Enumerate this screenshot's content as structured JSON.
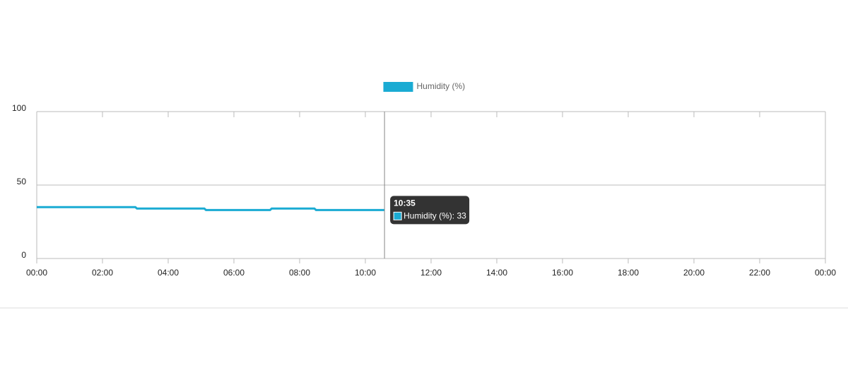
{
  "chart_data": {
    "type": "line",
    "x": [
      0,
      3.0,
      3.05,
      5.1,
      5.15,
      7.1,
      7.15,
      8.45,
      8.5,
      10.5833
    ],
    "series": [
      {
        "name": "Humidity (%)",
        "color": "#1aabd3",
        "values": [
          35,
          35,
          34,
          34,
          33,
          33,
          34,
          34,
          33,
          33
        ]
      }
    ],
    "xlim": [
      0,
      24
    ],
    "xticks": [
      {
        "value": 0,
        "label": "00:00"
      },
      {
        "value": 2,
        "label": "02:00"
      },
      {
        "value": 4,
        "label": "04:00"
      },
      {
        "value": 6,
        "label": "06:00"
      },
      {
        "value": 8,
        "label": "08:00"
      },
      {
        "value": 10,
        "label": "10:00"
      },
      {
        "value": 12,
        "label": "12:00"
      },
      {
        "value": 14,
        "label": "14:00"
      },
      {
        "value": 16,
        "label": "16:00"
      },
      {
        "value": 18,
        "label": "18:00"
      },
      {
        "value": 20,
        "label": "20:00"
      },
      {
        "value": 22,
        "label": "22:00"
      },
      {
        "value": 24,
        "label": "00:00"
      }
    ],
    "ylim": [
      0,
      100
    ],
    "yticks": [
      0,
      50,
      100
    ],
    "grid": true,
    "legend": "top",
    "tooltip": {
      "title": "10:35",
      "text": "Humidity (%): 33"
    }
  }
}
